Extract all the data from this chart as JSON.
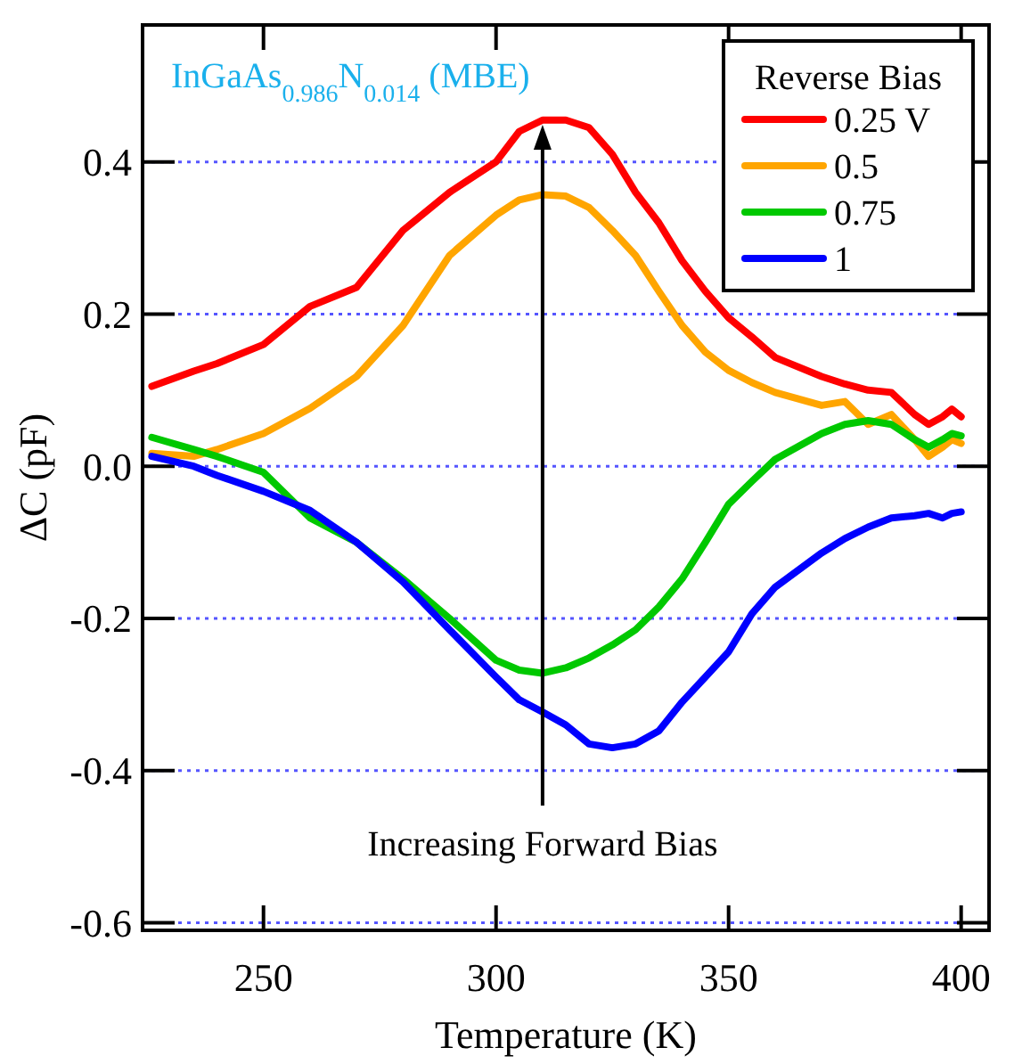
{
  "chart_data": {
    "type": "line",
    "xlabel": "Temperature (K)",
    "ylabel": "ΔC (pF)",
    "legend_title": "Reverse Bias",
    "legend": "top right",
    "grid": "y",
    "line_style": "solid",
    "marker": "none",
    "annotations": [
      "InGaAs$_{0.986}$N$_{0.014}$ (MBE)",
      "Increasing Forward Bias"
    ],
    "xlim": [
      224,
      406
    ],
    "xticks": [
      250,
      300,
      350,
      400
    ],
    "ylim": [
      -0.61,
      0.58
    ],
    "yticks": [
      -0.6,
      -0.4,
      -0.2,
      {
        "value": 0,
        "label": "0.0"
      },
      0.2,
      0.4
    ],
    "x": [
      226,
      235,
      240,
      250,
      260,
      270,
      280,
      290,
      300,
      305,
      310,
      315,
      320,
      325,
      330,
      335,
      340,
      345,
      350,
      355,
      360,
      370,
      375,
      380,
      385,
      390,
      393,
      396,
      398,
      400
    ],
    "series": [
      {
        "name": "0.25 V",
        "color": "#ff0000",
        "values": [
          0.105,
          0.125,
          0.135,
          0.16,
          0.21,
          0.235,
          0.31,
          0.36,
          0.4,
          0.44,
          0.455,
          0.455,
          0.445,
          0.41,
          0.36,
          0.32,
          0.27,
          0.23,
          0.195,
          0.17,
          0.143,
          0.118,
          0.108,
          0.1,
          0.097,
          0.068,
          0.055,
          0.065,
          0.075,
          0.065
        ]
      },
      {
        "name": "0.5",
        "color": "#ffa500",
        "values": [
          0.017,
          0.013,
          0.022,
          0.043,
          0.076,
          0.118,
          0.185,
          0.277,
          0.33,
          0.35,
          0.357,
          0.355,
          0.34,
          0.31,
          0.277,
          0.23,
          0.185,
          0.15,
          0.126,
          0.11,
          0.097,
          0.08,
          0.085,
          0.055,
          0.068,
          0.035,
          0.013,
          0.025,
          0.035,
          0.03
        ]
      },
      {
        "name": "0.75",
        "color": "#00c800",
        "values": [
          0.038,
          0.022,
          0.013,
          -0.008,
          -0.068,
          -0.1,
          -0.148,
          -0.2,
          -0.255,
          -0.268,
          -0.272,
          -0.265,
          -0.252,
          -0.235,
          -0.215,
          -0.185,
          -0.148,
          -0.1,
          -0.05,
          -0.02,
          0.009,
          0.043,
          0.055,
          0.06,
          0.055,
          0.035,
          0.025,
          0.035,
          0.043,
          0.04
        ]
      },
      {
        "name": "1",
        "color": "#0000ff",
        "values": [
          0.013,
          0.0,
          -0.012,
          -0.033,
          -0.058,
          -0.1,
          -0.152,
          -0.215,
          -0.277,
          -0.307,
          -0.323,
          -0.34,
          -0.365,
          -0.37,
          -0.365,
          -0.348,
          -0.31,
          -0.277,
          -0.244,
          -0.194,
          -0.159,
          -0.114,
          -0.095,
          -0.08,
          -0.068,
          -0.065,
          -0.062,
          -0.068,
          -0.062,
          -0.06
        ]
      }
    ]
  }
}
